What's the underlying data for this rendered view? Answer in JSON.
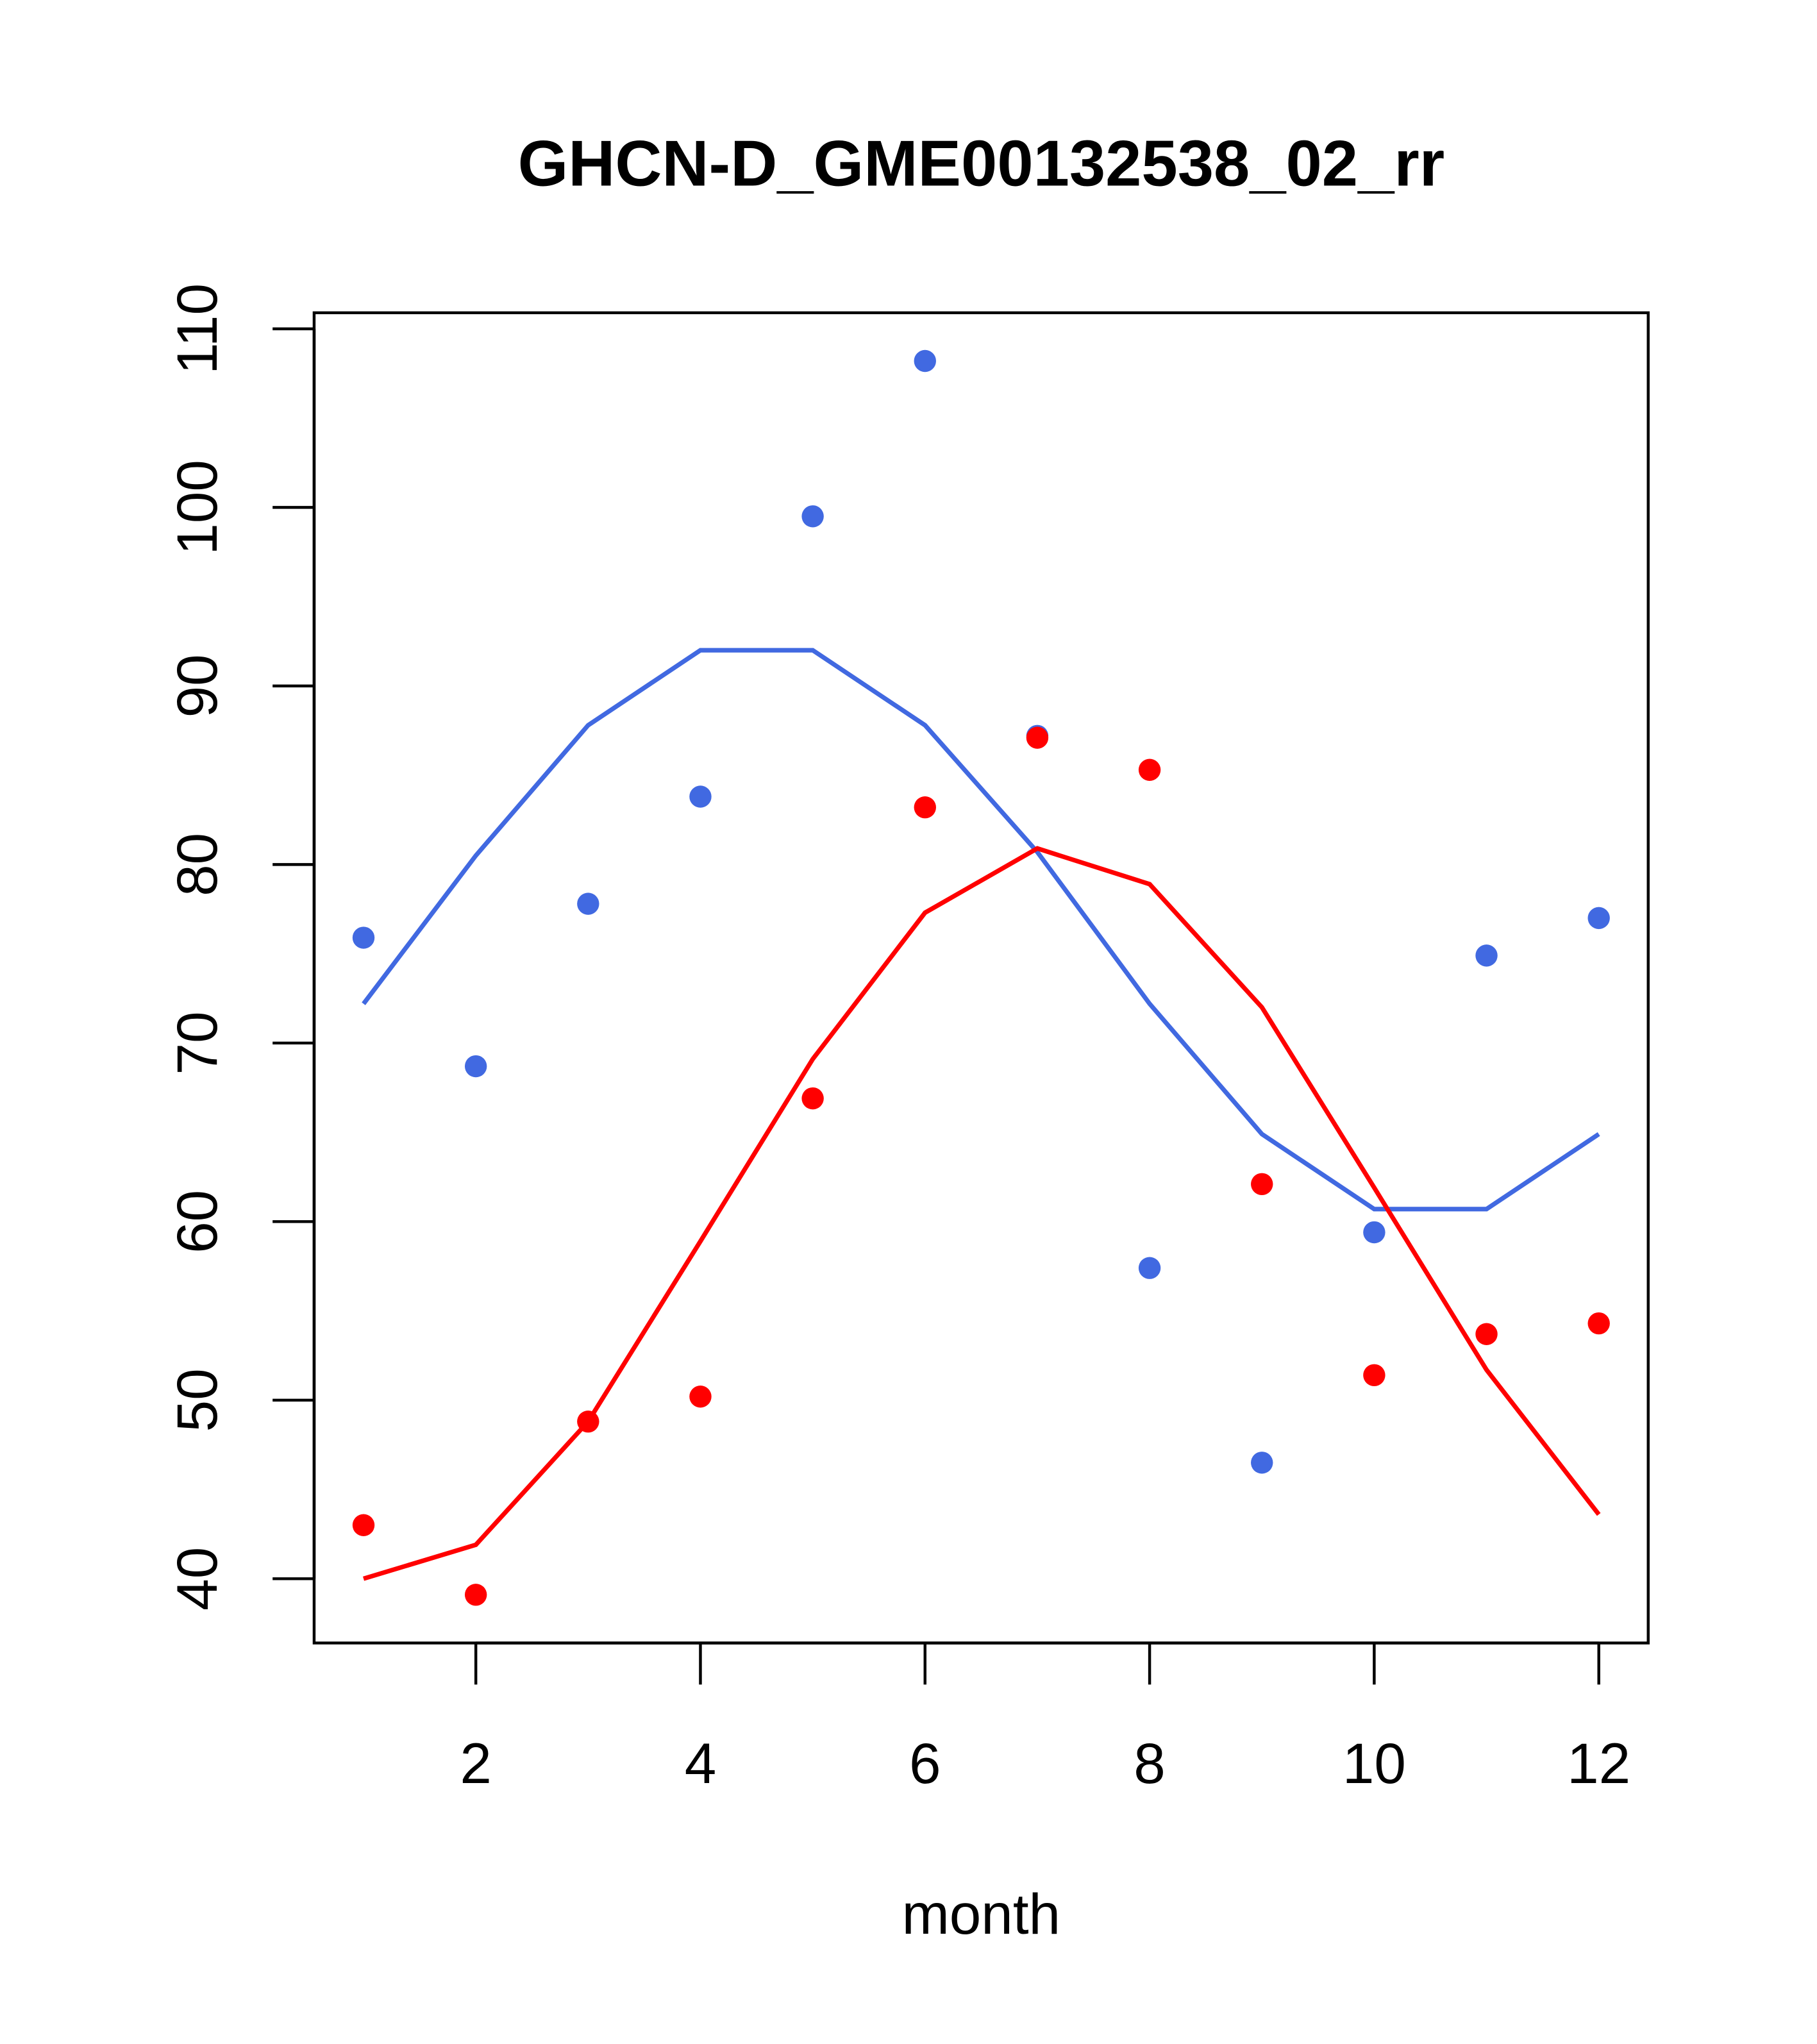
{
  "chart_data": {
    "type": "scatter",
    "title": "GHCN-D_GME00132538_02_rr",
    "xlabel": "month",
    "ylabel": "",
    "xlim": [
      0.56,
      12.44
    ],
    "ylim": [
      36.4,
      110.9
    ],
    "xticks": [
      2,
      4,
      6,
      8,
      10,
      12
    ],
    "yticks": [
      40,
      50,
      60,
      70,
      80,
      90,
      100,
      110
    ],
    "grid": false,
    "legend": "none",
    "x": [
      1,
      2,
      3,
      4,
      5,
      6,
      7,
      8,
      9,
      10,
      11,
      12
    ],
    "series": [
      {
        "name": "blue points",
        "kind": "points",
        "color": "#4169E1",
        "values": [
          75.9,
          68.7,
          77.8,
          83.8,
          99.5,
          108.2,
          87.2,
          57.4,
          46.5,
          59.4,
          74.9,
          77.0
        ]
      },
      {
        "name": "blue curve",
        "kind": "line",
        "color": "#4169E1",
        "values": [
          72.2,
          80.5,
          87.8,
          92.0,
          92.0,
          87.8,
          80.7,
          72.2,
          64.9,
          60.7,
          60.7,
          64.9
        ]
      },
      {
        "name": "red points",
        "kind": "points",
        "color": "#FF0000",
        "values": [
          43.0,
          39.1,
          48.8,
          50.2,
          66.9,
          83.2,
          87.1,
          85.3,
          62.1,
          51.4,
          53.7,
          54.3
        ]
      },
      {
        "name": "red curve",
        "kind": "line",
        "color": "#FF0000",
        "values": [
          40.0,
          41.9,
          48.8,
          58.9,
          69.1,
          77.3,
          80.9,
          78.9,
          72.0,
          61.9,
          51.7,
          43.6
        ]
      }
    ]
  }
}
